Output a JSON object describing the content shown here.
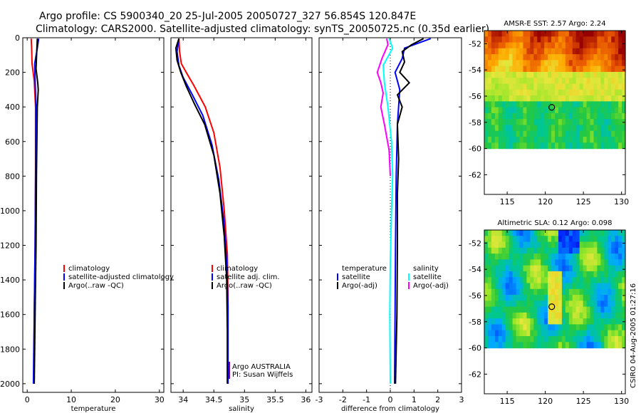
{
  "header": {
    "line1": "Argo profile: CS 5900340_20 25-Jul-2005 20050727_327 56.854S 120.847E",
    "line2": "Climatology: CARS2000. Satellite-adjusted climatology: synTS_20050725.nc (0.35d earlier)"
  },
  "footer_vertical": "CSIRO 04-Aug-2005 01:27:16",
  "chart_data": [
    {
      "type": "line",
      "xlabel": "temperature",
      "ylabel": "",
      "xlim": [
        -1,
        31
      ],
      "ylim": [
        2050,
        0
      ],
      "xticks": [
        0,
        10,
        20,
        30
      ],
      "yticks": [
        0,
        200,
        400,
        600,
        800,
        1000,
        1200,
        1400,
        1600,
        1800,
        2000
      ],
      "legend": [
        "climatology",
        "satellite-adjusted climatology",
        "Argo(..raw -QC)"
      ],
      "series": [
        {
          "name": "climatology",
          "color": "#ff0000",
          "points": [
            [
              0.9,
              5
            ],
            [
              1.0,
              60
            ],
            [
              1.1,
              150
            ],
            [
              1.6,
              250
            ],
            [
              1.9,
              400
            ],
            [
              1.9,
              800
            ],
            [
              1.8,
              1200
            ],
            [
              1.6,
              1600
            ],
            [
              1.5,
              2000
            ]
          ]
        },
        {
          "name": "satellite-adjusted climatology",
          "color": "#0000ff",
          "points": [
            [
              2.6,
              5
            ],
            [
              2.3,
              60
            ],
            [
              1.7,
              150
            ],
            [
              1.8,
              250
            ],
            [
              2.0,
              400
            ],
            [
              1.9,
              800
            ],
            [
              1.8,
              1200
            ],
            [
              1.6,
              1600
            ],
            [
              1.4,
              2000
            ]
          ]
        },
        {
          "name": "Argo(..raw -QC)",
          "color": "#000000",
          "points": [
            [
              2.3,
              5
            ],
            [
              2.2,
              60
            ],
            [
              2.1,
              120
            ],
            [
              2.0,
              180
            ],
            [
              2.4,
              260
            ],
            [
              2.5,
              300
            ],
            [
              2.3,
              400
            ],
            [
              2.2,
              600
            ],
            [
              2.1,
              800
            ],
            [
              2.0,
              1200
            ],
            [
              1.8,
              1600
            ],
            [
              1.6,
              2000
            ]
          ]
        }
      ]
    },
    {
      "type": "line",
      "xlabel": "salinity",
      "xlim": [
        33.8,
        36.1
      ],
      "ylim": [
        2050,
        0
      ],
      "xticks": [
        34,
        34.5,
        35,
        35.5,
        36
      ],
      "yticks": [
        0,
        200,
        400,
        600,
        800,
        1000,
        1200,
        1400,
        1600,
        1800,
        2000
      ],
      "legend": [
        "climatology",
        "satellite adj. clim.",
        "Argo(..raw -QC)"
      ],
      "annotation": [
        "Argo AUSTRALIA",
        "PI: Susan Wijffels"
      ],
      "series": [
        {
          "name": "climatology",
          "color": "#ff0000",
          "points": [
            [
              33.93,
              5
            ],
            [
              33.94,
              80
            ],
            [
              33.97,
              150
            ],
            [
              34.05,
              200
            ],
            [
              34.18,
              280
            ],
            [
              34.36,
              400
            ],
            [
              34.5,
              550
            ],
            [
              34.6,
              750
            ],
            [
              34.67,
              1000
            ],
            [
              34.72,
              1250
            ],
            [
              34.73,
              1500
            ],
            [
              34.73,
              2000
            ]
          ]
        },
        {
          "name": "satellite adj. clim.",
          "color": "#0000ff",
          "points": [
            [
              33.93,
              5
            ],
            [
              33.9,
              80
            ],
            [
              33.93,
              160
            ],
            [
              34.0,
              230
            ],
            [
              34.15,
              330
            ],
            [
              34.32,
              450
            ],
            [
              34.47,
              620
            ],
            [
              34.58,
              820
            ],
            [
              34.66,
              1050
            ],
            [
              34.71,
              1300
            ],
            [
              34.73,
              1550
            ],
            [
              34.73,
              2000
            ]
          ]
        },
        {
          "name": "Argo(..raw -QC)",
          "color": "#000000",
          "points": [
            [
              33.93,
              5
            ],
            [
              33.88,
              60
            ],
            [
              33.9,
              130
            ],
            [
              33.96,
              200
            ],
            [
              34.05,
              280
            ],
            [
              34.18,
              380
            ],
            [
              34.35,
              500
            ],
            [
              34.5,
              680
            ],
            [
              34.6,
              900
            ],
            [
              34.67,
              1150
            ],
            [
              34.71,
              1400
            ],
            [
              34.72,
              1700
            ],
            [
              34.72,
              2000
            ]
          ]
        }
      ]
    },
    {
      "type": "line",
      "xlabel": "difference from climatology",
      "xlim": [
        -3,
        3
      ],
      "ylim": [
        2050,
        0
      ],
      "xticks": [
        -3,
        -2,
        -1,
        0,
        1,
        2,
        3
      ],
      "yticks": [
        0,
        200,
        400,
        600,
        800,
        1000,
        1200,
        1400,
        1600,
        1800,
        2000
      ],
      "legend_left": [
        "temperature",
        "satellite",
        "Argo(-adj)"
      ],
      "legend_right": [
        "salinity",
        "satellite",
        "Argo(-adj)"
      ],
      "series": [
        {
          "name": "temperature satellite",
          "color": "#0000ff",
          "points": [
            [
              1.7,
              5
            ],
            [
              1.2,
              30
            ],
            [
              0.6,
              60
            ],
            [
              0.5,
              120
            ],
            [
              0.2,
              200
            ],
            [
              0.4,
              300
            ],
            [
              0.3,
              500
            ],
            [
              0.25,
              800
            ],
            [
              0.22,
              1200
            ],
            [
              0.2,
              1600
            ],
            [
              0.18,
              2000
            ]
          ]
        },
        {
          "name": "temperature Argo(-adj)",
          "color": "#000000",
          "points": [
            [
              1.4,
              5
            ],
            [
              0.9,
              40
            ],
            [
              0.5,
              80
            ],
            [
              0.6,
              140
            ],
            [
              0.4,
              200
            ],
            [
              0.8,
              260
            ],
            [
              0.3,
              330
            ],
            [
              0.5,
              400
            ],
            [
              0.3,
              500
            ],
            [
              0.35,
              700
            ],
            [
              0.3,
              900
            ],
            [
              0.3,
              1200
            ],
            [
              0.28,
              1600
            ],
            [
              0.22,
              2000
            ]
          ]
        },
        {
          "name": "salinity satellite",
          "color": "#00ffff",
          "points": [
            [
              -0.05,
              5
            ],
            [
              0.1,
              60
            ],
            [
              -0.3,
              160
            ],
            [
              -0.25,
              260
            ],
            [
              -0.1,
              400
            ],
            [
              0.05,
              600
            ],
            [
              0.1,
              800
            ],
            [
              0.05,
              1000
            ],
            [
              0.0,
              1300
            ],
            [
              -0.02,
              1600
            ],
            [
              0.0,
              2000
            ]
          ]
        },
        {
          "name": "salinity Argo(-adj)",
          "color": "#ff00ff",
          "points": [
            [
              -0.15,
              5
            ],
            [
              -0.1,
              40
            ],
            [
              -0.35,
              120
            ],
            [
              -0.55,
              200
            ],
            [
              -0.4,
              260
            ],
            [
              -0.3,
              320
            ],
            [
              -0.4,
              400
            ],
            [
              -0.25,
              500
            ],
            [
              -0.05,
              650
            ],
            [
              0.0,
              800
            ]
          ]
        }
      ]
    },
    {
      "type": "heatmap",
      "title": "AMSR-E SST: 2.57 Argo: 2.24",
      "xlim": [
        112,
        130.5
      ],
      "ylim": [
        -63.5,
        -51
      ],
      "xticks": [
        115,
        120,
        125,
        130
      ],
      "yticks": [
        -52,
        -54,
        -56,
        -58,
        -60,
        -62
      ],
      "data_extent_lat": [
        -60,
        -51
      ],
      "marker": {
        "lon": 120.847,
        "lat": -56.854
      }
    },
    {
      "type": "heatmap",
      "title": "Altimetric SLA: 0.12 Argo: 0.098",
      "xlim": [
        112,
        130.5
      ],
      "ylim": [
        -63.5,
        -51
      ],
      "xticks": [
        115,
        120,
        125,
        130
      ],
      "yticks": [
        -52,
        -54,
        -56,
        -58,
        -60,
        -62
      ],
      "data_extent_lat": [
        -60,
        -51
      ],
      "marker": {
        "lon": 120.847,
        "lat": -56.854
      }
    }
  ]
}
